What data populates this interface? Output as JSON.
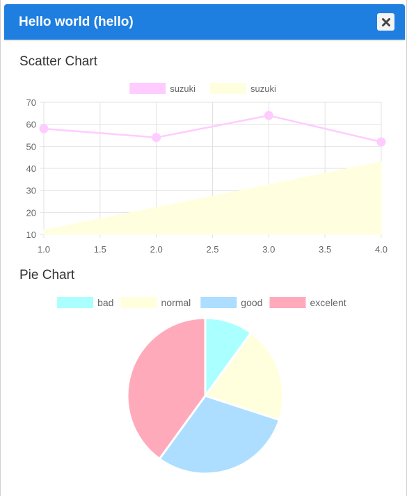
{
  "dialog": {
    "title": "Hello world (hello)",
    "close_icon": "close-icon"
  },
  "scatter": {
    "section_title": "Scatter Chart"
  },
  "pie": {
    "section_title": "Pie Chart"
  },
  "chart_data": [
    {
      "type": "line",
      "title": "Scatter Chart",
      "x": [
        1,
        2,
        3,
        4
      ],
      "xlim": [
        1.0,
        4.0
      ],
      "ylim": [
        10,
        70
      ],
      "xticks": [
        "1.0",
        "1.5",
        "2.0",
        "2.5",
        "3.0",
        "3.5",
        "4.0"
      ],
      "yticks": [
        "10",
        "20",
        "30",
        "40",
        "50",
        "60",
        "70"
      ],
      "grid": true,
      "legend_position": "top",
      "series": [
        {
          "name": "suzuki",
          "style": "line",
          "values": [
            58,
            54,
            64,
            52
          ],
          "color": "#ffccff"
        },
        {
          "name": "suzuki",
          "style": "area",
          "values": [
            12,
            22.3,
            32.6,
            43
          ],
          "color": "#ffffe0"
        }
      ]
    },
    {
      "type": "pie",
      "title": "Pie Chart",
      "legend_position": "top",
      "labels": [
        "bad",
        "normal",
        "good",
        "excelent"
      ],
      "values": [
        10,
        20,
        30,
        40
      ],
      "colors": [
        "#aaffff",
        "#ffffdd",
        "#addeff",
        "#ffaabb"
      ]
    }
  ]
}
